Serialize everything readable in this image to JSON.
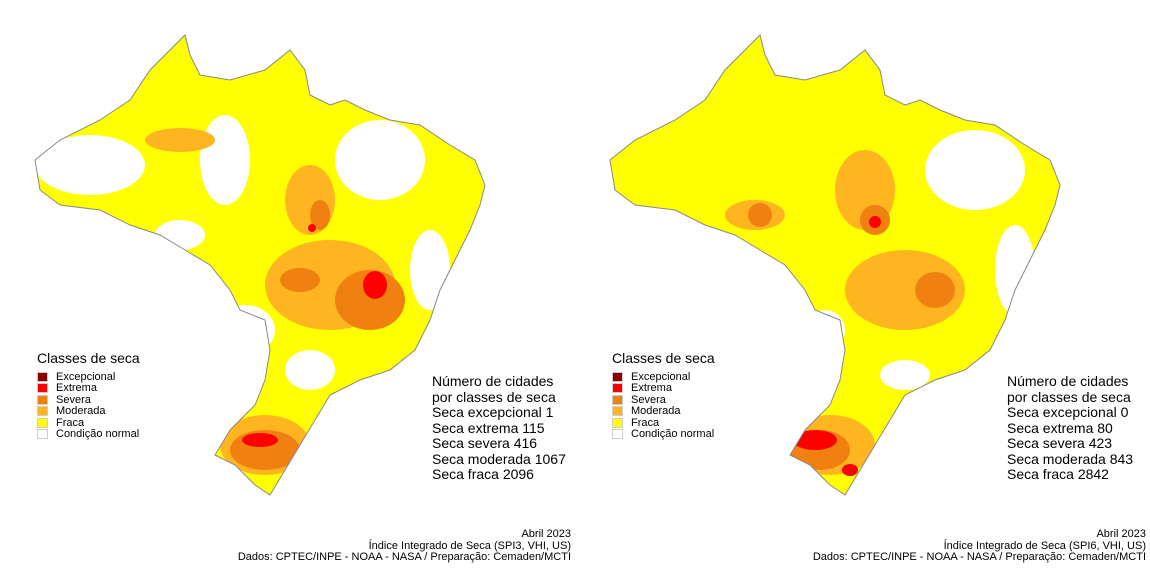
{
  "legend": {
    "title": "Classes de seca",
    "items": [
      {
        "label": "Excepcional",
        "color": "#8b0000"
      },
      {
        "label": "Extrema",
        "color": "#ff0000"
      },
      {
        "label": "Severa",
        "color": "#f08010"
      },
      {
        "label": "Moderada",
        "color": "#ffb520"
      },
      {
        "label": "Fraca",
        "color": "#ffff00"
      },
      {
        "label": "Condição normal",
        "color": "#ffffff"
      }
    ]
  },
  "maps": [
    {
      "stats": [
        "Número de cidades",
        "por classes de seca",
        "Seca excepcional 1",
        "Seca extrema  115",
        "Seca severa  416",
        "Seca moderada 1067",
        "Seca fraca  2096"
      ],
      "footer": [
        "Abril 2023",
        "Índice Integrado de Seca (SPI3, VHI, US)",
        "Dados: CPTEC/INPE - NOAA - NASA / Preparação: Cemaden/MCTI"
      ]
    },
    {
      "stats": [
        "Número de cidades",
        "por classes de seca",
        "Seca excepcional 0",
        "Seca extrema  80",
        "Seca severa  423",
        "Seca moderada 843",
        "Seca fraca  2842"
      ],
      "footer": [
        "Abril 2023",
        "Índice Integrado de Seca (SPI6, VHI, US)",
        "Dados: CPTEC/INPE - NOAA - NASA / Preparação: Cemaden/MCTI"
      ]
    }
  ]
}
